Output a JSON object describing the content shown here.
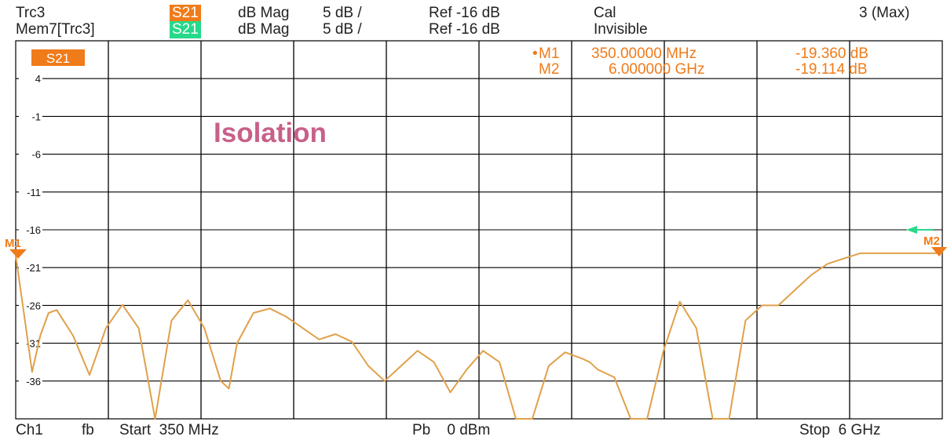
{
  "header": {
    "row1": {
      "trace": "Trc3",
      "param": "S21",
      "format": "dB Mag",
      "scale": "5 dB /",
      "ref": "Ref -16 dB",
      "status": "Cal",
      "count": "3 (Max)"
    },
    "row2": {
      "trace": "Mem7[Trc3]",
      "param": "S21",
      "format": "dB Mag",
      "scale": "5 dB /",
      "ref": "Ref -16 dB",
      "status": "Invisible"
    }
  },
  "markers": [
    {
      "label": "M1",
      "bullet": "•",
      "freq": "350.00000 MHz",
      "value": "-19.360 dB"
    },
    {
      "label": "M2",
      "bullet": "",
      "freq": "6.000000 GHz",
      "value": "-19.114 dB"
    }
  ],
  "trace_badge": "S21",
  "annotation": "Isolation",
  "footer": {
    "channel": "Ch1",
    "mode": "fb",
    "start": "Start  350 MHz",
    "power": "Pb    0 dBm",
    "stop": "Stop  6 GHz"
  },
  "colors": {
    "trace": "#e0a04a",
    "marker": "#f07b1a",
    "memory": "#27d98a",
    "grid": "#000000"
  },
  "chart_data": {
    "type": "line",
    "title": "",
    "xlabel": "",
    "ylabel": "",
    "xlim": [
      0.35,
      6.0
    ],
    "ylim": [
      -41,
      9
    ],
    "y_tick_values": [
      4,
      -1,
      -6,
      -11,
      -16,
      -21,
      -26,
      -31,
      -36
    ],
    "y_tick_labels": [
      "4",
      "-1",
      "-6",
      "-11",
      "-16",
      "-21",
      "-26",
      "-31",
      "-36"
    ],
    "x_divisions": 10,
    "grid": true,
    "series": [
      {
        "name": "S21",
        "x": [
          0.35,
          0.4,
          0.45,
          0.5,
          0.55,
          0.6,
          0.7,
          0.8,
          0.9,
          1.0,
          1.1,
          1.2,
          1.3,
          1.4,
          1.5,
          1.6,
          1.65,
          1.7,
          1.8,
          1.9,
          2.0,
          2.1,
          2.2,
          2.3,
          2.4,
          2.5,
          2.6,
          2.7,
          2.8,
          2.9,
          3.0,
          3.1,
          3.2,
          3.3,
          3.4,
          3.5,
          3.6,
          3.7,
          3.8,
          3.85,
          3.9,
          4.0,
          4.1,
          4.2,
          4.3,
          4.4,
          4.5,
          4.6,
          4.7,
          4.8,
          4.9,
          5.0,
          5.1,
          5.2,
          5.3,
          5.4,
          5.5,
          5.6,
          5.7,
          5.8,
          5.9,
          6.0
        ],
        "y": [
          -19.4,
          -27.0,
          -34.8,
          -30.0,
          -27.0,
          -26.6,
          -30.0,
          -35.2,
          -29.0,
          -25.9,
          -29.0,
          -41.0,
          -28.0,
          -25.3,
          -29.0,
          -36.0,
          -37.0,
          -31.0,
          -27.0,
          -26.4,
          -27.5,
          -29.0,
          -30.5,
          -29.8,
          -30.8,
          -34.0,
          -36.0,
          -34.0,
          -32.0,
          -33.5,
          -37.5,
          -34.5,
          -32.0,
          -33.5,
          -41.0,
          -41.0,
          -34.0,
          -32.2,
          -33.0,
          -33.5,
          -34.5,
          -35.5,
          -41.0,
          -41.0,
          -32.0,
          -25.5,
          -29.0,
          -41.0,
          -41.0,
          -28.0,
          -26.0,
          -26.0,
          -24.0,
          -22.0,
          -20.5,
          -19.8,
          -19.1,
          -19.1,
          -19.1,
          -19.1,
          -19.1,
          -19.1
        ]
      }
    ]
  }
}
